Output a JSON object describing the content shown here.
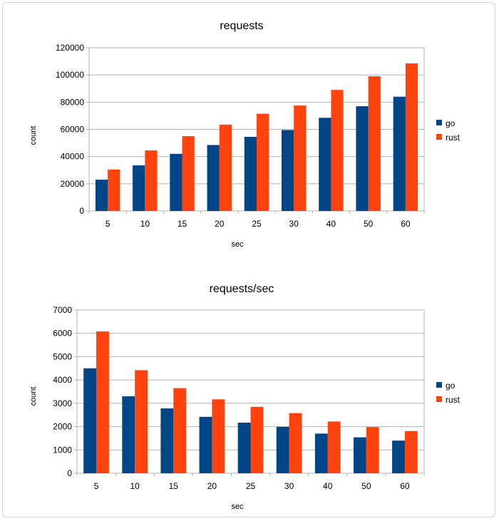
{
  "chart_data": [
    {
      "type": "bar",
      "title": "requests",
      "xlabel": "sec",
      "ylabel": "count",
      "categories": [
        "5",
        "10",
        "15",
        "20",
        "25",
        "30",
        "40",
        "50",
        "60"
      ],
      "ylim": [
        0,
        120000
      ],
      "yticks": [
        "0",
        "20000",
        "40000",
        "60000",
        "80000",
        "100000",
        "120000"
      ],
      "grid": true,
      "legend_position": "right",
      "series": [
        {
          "name": "go",
          "color": "#004586",
          "values": [
            23000,
            33500,
            42000,
            48500,
            54500,
            59500,
            68500,
            77000,
            84000
          ]
        },
        {
          "name": "rust",
          "color": "#ff420e",
          "values": [
            30500,
            44500,
            55000,
            63500,
            71500,
            77500,
            89000,
            99000,
            108500
          ]
        }
      ]
    },
    {
      "type": "bar",
      "title": "requests/sec",
      "xlabel": "sec",
      "ylabel": "count",
      "categories": [
        "5",
        "10",
        "15",
        "20",
        "25",
        "30",
        "40",
        "50",
        "60"
      ],
      "ylim": [
        0,
        7000
      ],
      "yticks": [
        "0",
        "1000",
        "2000",
        "3000",
        "4000",
        "5000",
        "6000",
        "7000"
      ],
      "grid": true,
      "legend_position": "right",
      "series": [
        {
          "name": "go",
          "color": "#004586",
          "values": [
            4500,
            3300,
            2780,
            2420,
            2170,
            1990,
            1700,
            1540,
            1400
          ]
        },
        {
          "name": "rust",
          "color": "#ff420e",
          "values": [
            6080,
            4420,
            3650,
            3170,
            2850,
            2580,
            2220,
            1980,
            1810
          ]
        }
      ]
    }
  ]
}
